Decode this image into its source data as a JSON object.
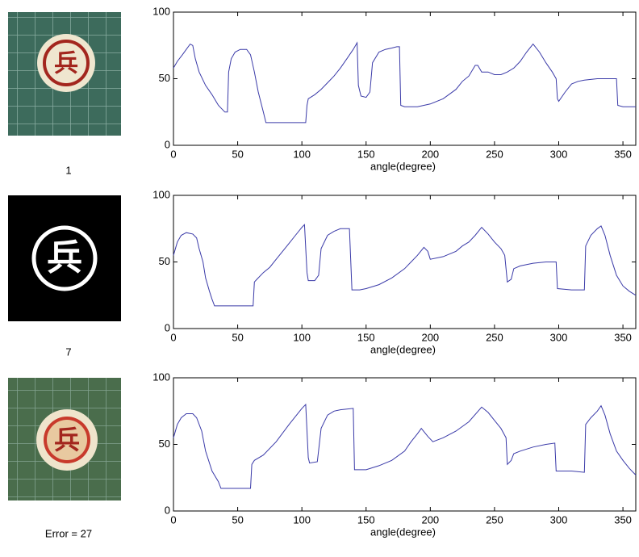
{
  "chart_data": [
    {
      "type": "line",
      "xlabel": "angle(degree)",
      "color": "#3a3aa8",
      "xlim": [
        0,
        360
      ],
      "ylim": [
        0,
        100
      ],
      "xticks": [
        0,
        50,
        100,
        150,
        200,
        250,
        300,
        350
      ],
      "yticks": [
        0,
        50,
        100
      ],
      "x": [
        0,
        3,
        7,
        10,
        13,
        15,
        17,
        20,
        25,
        30,
        35,
        40,
        42,
        43,
        45,
        48,
        52,
        57,
        60,
        63,
        66,
        70,
        72,
        80,
        90,
        103,
        104,
        105,
        110,
        115,
        120,
        125,
        130,
        135,
        140,
        143,
        144,
        146,
        150,
        153,
        155,
        160,
        165,
        170,
        174,
        176,
        177,
        180,
        190,
        200,
        210,
        220,
        225,
        230,
        235,
        237,
        240,
        245,
        250,
        255,
        260,
        265,
        270,
        275,
        280,
        285,
        290,
        295,
        298,
        299,
        300,
        305,
        310,
        315,
        320,
        330,
        340,
        345,
        346,
        350,
        360
      ],
      "values": [
        58,
        63,
        68,
        72,
        76,
        75,
        65,
        55,
        45,
        38,
        30,
        25,
        25,
        55,
        65,
        70,
        72,
        72,
        68,
        55,
        40,
        25,
        17,
        17,
        17,
        17,
        30,
        35,
        38,
        42,
        47,
        52,
        58,
        65,
        72,
        77,
        45,
        37,
        36,
        40,
        62,
        70,
        72,
        73,
        74,
        74,
        30,
        29,
        29,
        31,
        35,
        42,
        48,
        52,
        60,
        60,
        55,
        55,
        53,
        53,
        55,
        58,
        63,
        70,
        76,
        70,
        62,
        55,
        50,
        35,
        33,
        40,
        46,
        48,
        49,
        50,
        50,
        50,
        30,
        29,
        29
      ]
    },
    {
      "type": "line",
      "xlabel": "angle(degree)",
      "color": "#3a3aa8",
      "xlim": [
        0,
        360
      ],
      "ylim": [
        0,
        100
      ],
      "xticks": [
        0,
        50,
        100,
        150,
        200,
        250,
        300,
        350
      ],
      "yticks": [
        0,
        50,
        100
      ],
      "x": [
        0,
        3,
        6,
        10,
        15,
        18,
        20,
        23,
        25,
        28,
        30,
        32,
        40,
        50,
        62,
        63,
        65,
        70,
        75,
        80,
        85,
        90,
        95,
        100,
        102,
        104,
        105,
        110,
        113,
        115,
        120,
        125,
        130,
        137,
        139,
        145,
        150,
        160,
        170,
        180,
        185,
        190,
        195,
        198,
        200,
        210,
        220,
        225,
        230,
        235,
        240,
        245,
        250,
        255,
        258,
        260,
        263,
        265,
        270,
        280,
        290,
        298,
        299,
        310,
        320,
        321,
        325,
        330,
        333,
        336,
        340,
        345,
        350,
        355,
        360
      ],
      "values": [
        55,
        65,
        70,
        72,
        71,
        68,
        60,
        50,
        38,
        28,
        22,
        17,
        17,
        17,
        17,
        35,
        37,
        42,
        46,
        52,
        58,
        64,
        70,
        76,
        78,
        42,
        36,
        36,
        40,
        60,
        70,
        73,
        75,
        75,
        29,
        29,
        30,
        33,
        38,
        45,
        50,
        55,
        61,
        58,
        52,
        54,
        58,
        62,
        65,
        70,
        76,
        71,
        65,
        60,
        55,
        35,
        37,
        45,
        47,
        49,
        50,
        50,
        30,
        29,
        29,
        62,
        70,
        75,
        77,
        70,
        55,
        40,
        32,
        28,
        25
      ]
    },
    {
      "type": "line",
      "xlabel": "angle(degree)",
      "color": "#3a3aa8",
      "xlim": [
        0,
        360
      ],
      "ylim": [
        0,
        100
      ],
      "xticks": [
        0,
        50,
        100,
        150,
        200,
        250,
        300,
        350
      ],
      "yticks": [
        0,
        50,
        100
      ],
      "x": [
        0,
        3,
        6,
        10,
        15,
        18,
        22,
        25,
        30,
        35,
        37,
        50,
        60,
        61,
        63,
        70,
        80,
        90,
        100,
        103,
        105,
        106,
        112,
        115,
        120,
        125,
        130,
        140,
        141,
        150,
        160,
        170,
        180,
        185,
        190,
        193,
        198,
        202,
        210,
        220,
        230,
        240,
        245,
        250,
        255,
        259,
        260,
        263,
        265,
        270,
        280,
        290,
        297,
        298,
        310,
        320,
        321,
        325,
        330,
        333,
        336,
        340,
        345,
        350,
        355,
        360
      ],
      "values": [
        55,
        65,
        70,
        73,
        73,
        70,
        60,
        45,
        30,
        22,
        17,
        17,
        17,
        35,
        38,
        42,
        52,
        65,
        77,
        80,
        40,
        36,
        37,
        62,
        72,
        75,
        76,
        77,
        31,
        31,
        34,
        38,
        45,
        52,
        58,
        62,
        56,
        52,
        55,
        60,
        67,
        78,
        74,
        68,
        62,
        55,
        35,
        38,
        43,
        45,
        48,
        50,
        51,
        30,
        30,
        29,
        65,
        70,
        75,
        79,
        72,
        58,
        45,
        38,
        32,
        27
      ]
    }
  ],
  "captions": [
    "1",
    "7",
    "Error = 27"
  ],
  "glyphs": [
    "兵",
    "兵",
    "兵"
  ]
}
